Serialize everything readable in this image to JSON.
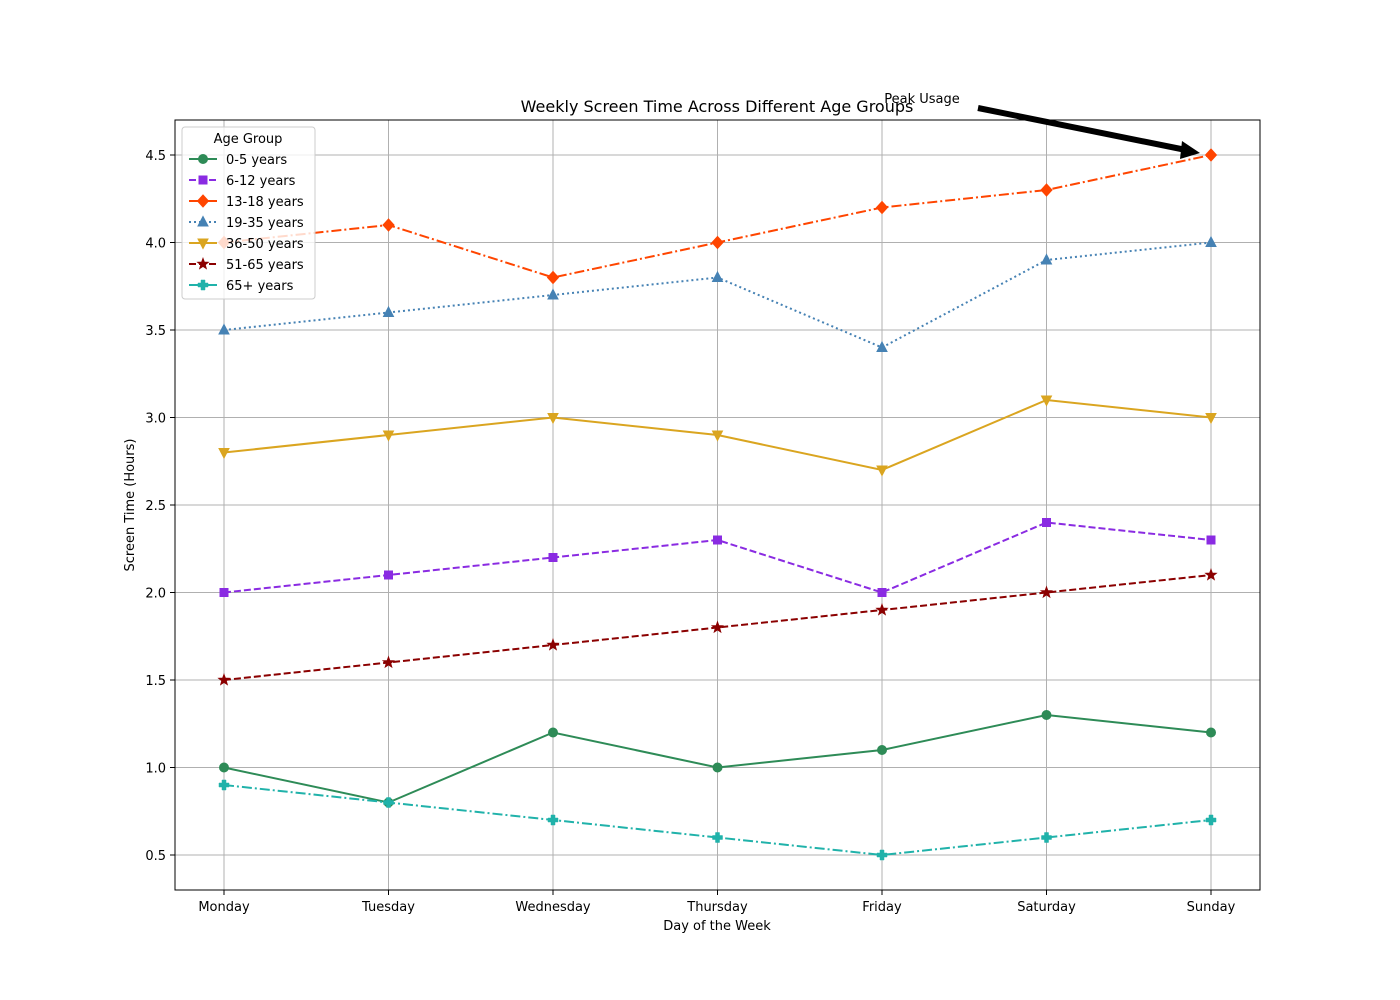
{
  "chart_data": {
    "type": "line",
    "title": "Weekly Screen Time Across Different Age Groups",
    "xlabel": "Day of the Week",
    "ylabel": "Screen Time (Hours)",
    "categories": [
      "Monday",
      "Tuesday",
      "Wednesday",
      "Thursday",
      "Friday",
      "Saturday",
      "Sunday"
    ],
    "ylim": [
      0.3,
      4.7
    ],
    "yticks": [
      0.5,
      1.0,
      1.5,
      2.0,
      2.5,
      3.0,
      3.5,
      4.0,
      4.5
    ],
    "grid": true,
    "legend": {
      "title": "Age Group",
      "placement": "top-left"
    },
    "series": [
      {
        "name": "0-5 years",
        "values": [
          1.0,
          0.8,
          1.2,
          1.0,
          1.1,
          1.3,
          1.2
        ],
        "color": "#2e8b57",
        "dash": "solid",
        "marker": "circle"
      },
      {
        "name": "6-12 years",
        "values": [
          2.0,
          2.1,
          2.2,
          2.3,
          2.0,
          2.4,
          2.3
        ],
        "color": "#8a2be2",
        "dash": "dashed",
        "marker": "square"
      },
      {
        "name": "13-18 years",
        "values": [
          4.0,
          4.1,
          3.8,
          4.0,
          4.2,
          4.3,
          4.5
        ],
        "color": "#ff4500",
        "dash": "dashdot",
        "marker": "diamond"
      },
      {
        "name": "19-35 years",
        "values": [
          3.5,
          3.6,
          3.7,
          3.8,
          3.4,
          3.9,
          4.0
        ],
        "color": "#4682b4",
        "dash": "dotted",
        "marker": "triangle-up"
      },
      {
        "name": "36-50 years",
        "values": [
          2.8,
          2.9,
          3.0,
          2.9,
          2.7,
          3.1,
          3.0
        ],
        "color": "#daa520",
        "dash": "solid",
        "marker": "triangle-down"
      },
      {
        "name": "51-65 years",
        "values": [
          1.5,
          1.6,
          1.7,
          1.8,
          1.9,
          2.0,
          2.1
        ],
        "color": "#8b0000",
        "dash": "dashed",
        "marker": "star"
      },
      {
        "name": "65+ years",
        "values": [
          0.9,
          0.8,
          0.7,
          0.6,
          0.5,
          0.6,
          0.7
        ],
        "color": "#20b2aa",
        "dash": "dashdot",
        "marker": "plus"
      }
    ],
    "annotations": [
      {
        "text": "Peak Usage",
        "x": "Sunday",
        "y": 4.5
      }
    ]
  }
}
